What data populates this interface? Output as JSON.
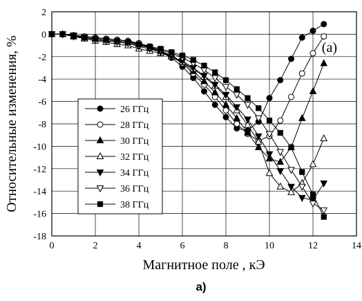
{
  "chart_data": {
    "type": "line",
    "xlabel": "Магнитное поле , кЭ",
    "ylabel": "Относительные изменения, %",
    "xlim": [
      0,
      14
    ],
    "ylim": [
      -18,
      2
    ],
    "xticks": [
      0,
      2,
      4,
      6,
      8,
      10,
      12,
      14
    ],
    "yticks": [
      2,
      0,
      -2,
      -4,
      -6,
      -8,
      -10,
      -12,
      -14,
      -16,
      -18
    ],
    "grid": true,
    "legend_position": "lower-left",
    "panel_label": "(a)",
    "caption": "а)",
    "series": [
      {
        "name": "26 ГГц",
        "marker": "circle-filled",
        "x": [
          0,
          0.5,
          1,
          1.5,
          2,
          2.5,
          3,
          3.5,
          4,
          4.5,
          5,
          5.5,
          6,
          6.5,
          7,
          7.5,
          8,
          8.5,
          9,
          9.5,
          10,
          10.5,
          11,
          11.5,
          12,
          12.5
        ],
        "y": [
          0,
          0,
          -0.1,
          -0.2,
          -0.3,
          -0.4,
          -0.5,
          -0.6,
          -0.9,
          -1.2,
          -1.6,
          -2.1,
          -2.9,
          -3.9,
          -5.1,
          -6.3,
          -7.4,
          -8.4,
          -8.6,
          -7.8,
          -5.7,
          -4.1,
          -2.2,
          -0.3,
          0.3,
          0.9
        ]
      },
      {
        "name": "28 ГГц",
        "marker": "circle-open",
        "x": [
          0,
          0.5,
          1,
          1.5,
          2,
          2.5,
          3,
          3.5,
          4,
          4.5,
          5,
          5.5,
          6,
          6.5,
          7,
          7.5,
          8,
          8.5,
          9,
          9.5,
          10,
          10.5,
          11,
          11.5,
          12,
          12.5
        ],
        "y": [
          0,
          0,
          -0.1,
          -0.2,
          -0.3,
          -0.4,
          -0.5,
          -0.6,
          -0.8,
          -1.1,
          -1.5,
          -2.0,
          -2.6,
          -3.5,
          -4.5,
          -5.6,
          -6.8,
          -8.0,
          -8.9,
          -9.5,
          -9.1,
          -7.7,
          -5.6,
          -3.5,
          -1.7,
          -0.2
        ]
      },
      {
        "name": "30 ГГц",
        "marker": "triangle-up-filled",
        "x": [
          0,
          0.5,
          1,
          1.5,
          2,
          2.5,
          3,
          3.5,
          4,
          4.5,
          5,
          5.5,
          6,
          6.5,
          7,
          7.5,
          8,
          8.5,
          9,
          9.5,
          10,
          10.5,
          11,
          11.5,
          12,
          12.5
        ],
        "y": [
          0,
          0,
          -0.2,
          -0.3,
          -0.4,
          -0.5,
          -0.6,
          -0.7,
          -0.9,
          -1.2,
          -1.5,
          -1.9,
          -2.5,
          -3.3,
          -4.2,
          -5.2,
          -6.3,
          -7.5,
          -8.8,
          -10.1,
          -11.1,
          -11.4,
          -10.1,
          -7.5,
          -5.1,
          -2.6
        ]
      },
      {
        "name": "32 ГГц",
        "marker": "triangle-up-open",
        "x": [
          0,
          0.5,
          1,
          1.5,
          2,
          2.5,
          3,
          3.5,
          4,
          4.5,
          5,
          5.5,
          6,
          6.5,
          7,
          7.5,
          8,
          8.5,
          9,
          9.5,
          10,
          10.5,
          11,
          11.5,
          12,
          12.5
        ],
        "y": [
          0,
          0,
          -0.2,
          -0.4,
          -0.6,
          -0.7,
          -0.9,
          -1.0,
          -1.3,
          -1.5,
          -1.7,
          -2.0,
          -2.5,
          -3.1,
          -3.8,
          -4.6,
          -5.6,
          -6.8,
          -8.1,
          -9.6,
          -12.4,
          -13.6,
          -14.1,
          -13.3,
          -11.6,
          -9.3
        ]
      },
      {
        "name": "34 ГГц",
        "marker": "triangle-down-filled",
        "x": [
          0,
          0.5,
          1,
          1.5,
          2,
          2.5,
          3,
          3.5,
          4,
          4.5,
          5,
          5.5,
          6,
          6.5,
          7,
          7.5,
          8,
          8.5,
          9,
          9.5,
          10,
          10.5,
          11,
          11.5,
          12,
          12.5
        ],
        "y": [
          0,
          0,
          -0.1,
          -0.3,
          -0.5,
          -0.6,
          -0.7,
          -0.8,
          -1.1,
          -1.3,
          -1.6,
          -2.0,
          -2.4,
          -3.0,
          -3.7,
          -4.5,
          -5.4,
          -6.5,
          -7.6,
          -9.1,
          -10.7,
          -12.2,
          -13.6,
          -14.6,
          -14.8,
          -13.3
        ]
      },
      {
        "name": "36 ГГц",
        "marker": "triangle-down-open",
        "x": [
          0,
          0.5,
          1,
          1.5,
          2,
          2.5,
          3,
          3.5,
          4,
          4.5,
          5,
          5.5,
          6,
          6.5,
          7,
          7.5,
          8,
          8.5,
          9,
          9.5,
          10,
          10.5,
          11,
          11.5,
          12,
          12.5
        ],
        "y": [
          0,
          0,
          -0.2,
          -0.3,
          -0.5,
          -0.6,
          -0.7,
          -0.8,
          -1.0,
          -1.2,
          -1.4,
          -1.7,
          -2.1,
          -2.6,
          -3.2,
          -3.9,
          -4.7,
          -5.4,
          -6.3,
          -7.5,
          -8.9,
          -10.5,
          -12.1,
          -13.6,
          -15.1,
          -15.7
        ]
      },
      {
        "name": "38 ГГц",
        "marker": "square-filled",
        "x": [
          0,
          0.5,
          1,
          1.5,
          2,
          2.5,
          3,
          3.5,
          4,
          4.5,
          5,
          5.5,
          6,
          6.5,
          7,
          7.5,
          8,
          8.5,
          9,
          9.5,
          10,
          10.5,
          11,
          11.5,
          12,
          12.5
        ],
        "y": [
          0,
          0,
          -0.2,
          -0.3,
          -0.4,
          -0.5,
          -0.6,
          -0.7,
          -0.9,
          -1.1,
          -1.3,
          -1.6,
          -1.9,
          -2.3,
          -2.8,
          -3.4,
          -4.1,
          -4.9,
          -5.7,
          -6.6,
          -7.7,
          -8.8,
          -10.1,
          -12.3,
          -14.3,
          -16.3
        ]
      }
    ]
  },
  "colors": {
    "ink": "#000000",
    "background": "#ffffff",
    "grid": "#000000"
  }
}
